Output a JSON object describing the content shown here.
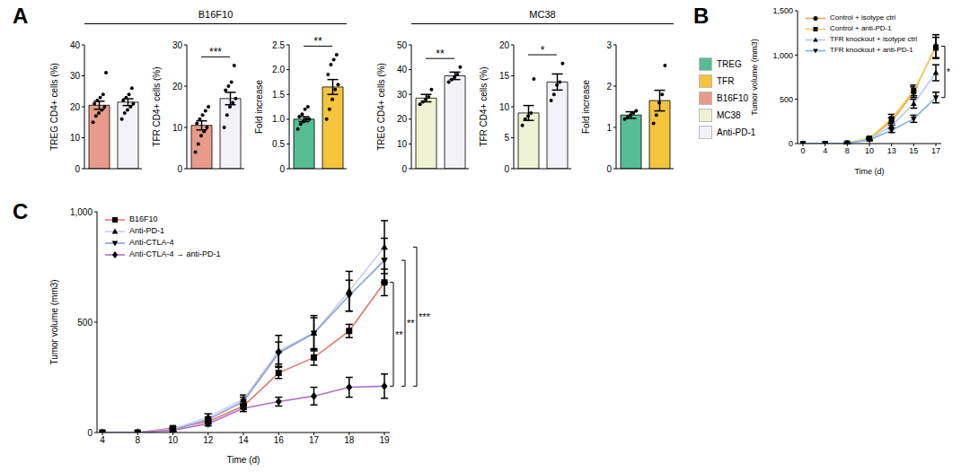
{
  "panel_a_legend": [
    {
      "name": "TREG",
      "color": "#55bc95"
    },
    {
      "name": "TFR",
      "color": "#f3c43c"
    },
    {
      "name": "B16F10",
      "color": "#e99b8a"
    },
    {
      "name": "MC38",
      "color": "#eef2d2"
    },
    {
      "name": "Anti-PD-1",
      "color": "#f3f2f8"
    }
  ],
  "chart_data": [
    {
      "type": "bar",
      "panel": "A",
      "group": "B16F10",
      "y_label": "TREG CD4+ cells (%)",
      "categories": [
        "B16F10",
        "Anti-PD-1"
      ],
      "values": [
        20.5,
        21.5
      ],
      "errors": [
        1.3,
        1.1
      ],
      "points": [
        [
          15,
          17,
          18,
          19,
          20,
          21,
          22,
          23,
          24,
          31
        ],
        [
          16,
          18,
          19,
          20,
          21,
          22,
          23,
          24,
          26
        ]
      ],
      "colors": [
        "#e99b8a",
        "#f3f2f8"
      ],
      "ylim": [
        0,
        40
      ],
      "yticks": [
        0,
        10,
        20,
        30,
        40
      ],
      "tick_labels": "y"
    },
    {
      "type": "bar",
      "panel": "A",
      "group": "B16F10",
      "y_label": "TFR CD4+ cells (%)",
      "categories": [
        "B16F10",
        "Anti-PD-1"
      ],
      "values": [
        10.5,
        17
      ],
      "errors": [
        1.1,
        1.5
      ],
      "points": [
        [
          4,
          6,
          8,
          9,
          10,
          11,
          12,
          13,
          14,
          15
        ],
        [
          10,
          13,
          15,
          16,
          17,
          19,
          20,
          21,
          25
        ]
      ],
      "colors": [
        "#e99b8a",
        "#f3f2f8"
      ],
      "ylim": [
        0,
        30
      ],
      "yticks": [
        0,
        10,
        20,
        30
      ],
      "significance": "***",
      "tick_labels": "y"
    },
    {
      "type": "bar",
      "panel": "A",
      "group": "B16F10",
      "y_label": "Fold increase",
      "categories": [
        "TREG",
        "TFR"
      ],
      "values": [
        1.0,
        1.65
      ],
      "errors": [
        0.05,
        0.15
      ],
      "points": [
        [
          0.8,
          0.9,
          0.95,
          1.0,
          1.0,
          1.05,
          1.1,
          1.2,
          1.25
        ],
        [
          1.0,
          1.2,
          1.4,
          1.6,
          1.7,
          1.9,
          2.1,
          2.2,
          2.3
        ]
      ],
      "colors": [
        "#55bc95",
        "#f3c43c"
      ],
      "ylim": [
        0,
        2.5
      ],
      "yticks": [
        0,
        0.5,
        {
          "value": 1,
          "label": "1.0"
        },
        1.5,
        {
          "value": 2,
          "label": "2.0"
        },
        2.5
      ],
      "significance": "**",
      "tick_labels": "y"
    },
    {
      "type": "bar",
      "panel": "A",
      "group": "MC38",
      "y_label": "TREG CD4+ cells (%)",
      "categories": [
        "MC38",
        "Anti-PD-1"
      ],
      "values": [
        28.5,
        37.5
      ],
      "errors": [
        1.5,
        1.5
      ],
      "points": [
        [
          26,
          27,
          28,
          29,
          32
        ],
        [
          35,
          36,
          37,
          38,
          41
        ]
      ],
      "colors": [
        "#eef2d2",
        "#f3f2f8"
      ],
      "ylim": [
        0,
        50
      ],
      "yticks": [
        0,
        10,
        20,
        30,
        40,
        50
      ],
      "significance": "**",
      "tick_labels": "y"
    },
    {
      "type": "bar",
      "panel": "A",
      "group": "MC38",
      "y_label": "TFR CD4+ cells (%)",
      "categories": [
        "MC38",
        "Anti-PD-1"
      ],
      "values": [
        9,
        14
      ],
      "errors": [
        1.2,
        1.3
      ],
      "points": [
        [
          7,
          8,
          8.5,
          9,
          14.5
        ],
        [
          11,
          12,
          13.5,
          14,
          17
        ]
      ],
      "colors": [
        "#eef2d2",
        "#f3f2f8"
      ],
      "ylim": [
        0,
        20
      ],
      "yticks": [
        0,
        5,
        10,
        15,
        20
      ],
      "significance": "*",
      "tick_labels": "y"
    },
    {
      "type": "bar",
      "panel": "A",
      "group": "MC38",
      "y_label": "Fold increase",
      "categories": [
        "TREG",
        "TFR"
      ],
      "values": [
        1.3,
        1.65
      ],
      "errors": [
        0.08,
        0.25
      ],
      "points": [
        [
          1.2,
          1.25,
          1.3,
          1.35,
          1.4
        ],
        [
          1.1,
          1.3,
          1.6,
          1.8,
          2.5
        ]
      ],
      "colors": [
        "#55bc95",
        "#f3c43c"
      ],
      "ylim": [
        0,
        3
      ],
      "yticks": [
        0,
        1,
        2,
        3
      ],
      "tick_labels": "y"
    },
    {
      "type": "line",
      "panel": "B",
      "y_label": "Tumor volume (mm3)",
      "x_label": "Time (d)",
      "categories": [
        "0",
        "4",
        "8",
        "10",
        "13",
        "15",
        "17"
      ],
      "ylim": [
        0,
        1500
      ],
      "yticks": [
        0,
        500,
        {
          "value": 1000,
          "label": "1,000"
        },
        {
          "value": 1500,
          "label": "1,500"
        }
      ],
      "legend": "upper left",
      "series": [
        {
          "name": "Control + isotype ctrl",
          "color": "#f0a04b",
          "marker": "circle",
          "values": [
            0,
            0,
            5,
            60,
            250,
            580,
            1100
          ],
          "errors": [
            0,
            0,
            2,
            10,
            40,
            60,
            130
          ]
        },
        {
          "name": "Control + anti-PD-1",
          "color": "#f2d062",
          "marker": "square",
          "values": [
            0,
            0,
            5,
            60,
            280,
            600,
            1080
          ],
          "errors": [
            0,
            0,
            2,
            10,
            50,
            60,
            120
          ]
        },
        {
          "name": "TFR knockout + isotype ctrl",
          "color": "#b7c9ec",
          "marker": "triangle",
          "values": [
            0,
            0,
            5,
            50,
            200,
            450,
            800
          ],
          "errors": [
            0,
            0,
            2,
            8,
            30,
            50,
            90
          ]
        },
        {
          "name": "TFR knockout + anti-PD-1",
          "color": "#7fb3e0",
          "marker": "triangle-down",
          "values": [
            0,
            0,
            3,
            40,
            150,
            280,
            520
          ],
          "errors": [
            0,
            0,
            2,
            8,
            25,
            40,
            60
          ]
        }
      ],
      "comparisons": [
        {
          "series": [
            "Control + isotype ctrl",
            "TFR knockout + anti-PD-1"
          ],
          "label": "*"
        }
      ]
    },
    {
      "type": "line",
      "panel": "C",
      "y_label": "Tumor volume (mm3)",
      "x_label": "Time (d)",
      "categories": [
        "4",
        "8",
        "10",
        "12",
        "14",
        "16",
        "17",
        "18",
        "19"
      ],
      "ylim": [
        0,
        1000
      ],
      "yticks": [
        0,
        500,
        {
          "value": 1000,
          "label": "1,000"
        }
      ],
      "legend": "upper left",
      "series": [
        {
          "name": "B16F10",
          "color": "#e07a6a",
          "marker": "square",
          "values": [
            0,
            0,
            20,
            50,
            120,
            270,
            340,
            460,
            680
          ],
          "errors": [
            0,
            0,
            5,
            10,
            15,
            25,
            35,
            30,
            60
          ]
        },
        {
          "name": "Anti-PD-1",
          "color": "#c8cfee",
          "marker": "triangle",
          "values": [
            0,
            0,
            15,
            70,
            150,
            370,
            450,
            640,
            840
          ],
          "errors": [
            0,
            0,
            5,
            15,
            20,
            70,
            80,
            90,
            120
          ]
        },
        {
          "name": "Anti-CTLA-4",
          "color": "#8e9fd6",
          "marker": "triangle-down",
          "values": [
            0,
            0,
            10,
            60,
            140,
            360,
            450,
            620,
            780
          ],
          "errors": [
            0,
            0,
            5,
            10,
            20,
            50,
            70,
            70,
            100
          ]
        },
        {
          "name": "Anti-CTLA-4 → anti-PD-1",
          "color": "#b06fc8",
          "marker": "diamond",
          "values": [
            0,
            0,
            10,
            40,
            110,
            140,
            165,
            205,
            210
          ],
          "errors": [
            0,
            0,
            5,
            10,
            15,
            20,
            40,
            45,
            55
          ]
        }
      ],
      "comparisons": [
        {
          "series": [
            "B16F10",
            "Anti-CTLA-4 → anti-PD-1"
          ],
          "label": "**"
        },
        {
          "series": [
            "Anti-CTLA-4",
            "Anti-CTLA-4 → anti-PD-1"
          ],
          "label": "**"
        },
        {
          "series": [
            "Anti-PD-1",
            "Anti-CTLA-4 → anti-PD-1"
          ],
          "label": "***"
        }
      ]
    }
  ]
}
